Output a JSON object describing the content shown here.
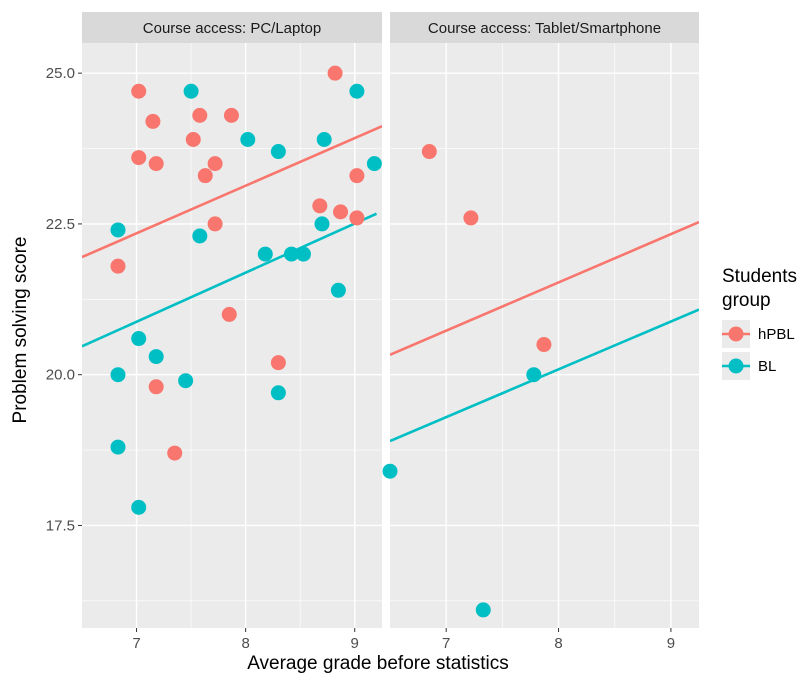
{
  "chart_data": {
    "type": "scatter",
    "xlabel": "Average grade before statistics",
    "ylabel": "Problem solving score",
    "xlim": [
      6.5,
      9.25
    ],
    "ylim": [
      15.8,
      25.5
    ],
    "x_ticks": [
      7,
      8,
      9
    ],
    "x_tick_labels": [
      "7",
      "8",
      "9"
    ],
    "y_ticks": [
      17.5,
      20.0,
      22.5,
      25.0
    ],
    "y_tick_labels": [
      "17.5",
      "20.0",
      "22.5",
      "25.0"
    ],
    "grid": true,
    "legend": {
      "title_line1": "Students",
      "title_line2": "group",
      "position": "right",
      "entries": [
        {
          "label": "hPBL",
          "color": "#F8766D"
        },
        {
          "label": "BL",
          "color": "#00BFC4"
        }
      ]
    },
    "panels": [
      {
        "title": "Course access: PC/Laptop",
        "series": [
          {
            "name": "hPBL",
            "color": "#F8766D",
            "points": [
              [
                7.02,
                24.7
              ],
              [
                7.02,
                23.6
              ],
              [
                7.15,
                24.2
              ],
              [
                7.18,
                23.5
              ],
              [
                6.83,
                21.8
              ],
              [
                7.18,
                19.8
              ],
              [
                7.35,
                18.7
              ],
              [
                7.52,
                23.9
              ],
              [
                7.58,
                24.3
              ],
              [
                7.63,
                23.3
              ],
              [
                7.72,
                23.5
              ],
              [
                7.72,
                22.5
              ],
              [
                7.87,
                24.3
              ],
              [
                7.85,
                21.0
              ],
              [
                8.3,
                20.2
              ],
              [
                8.68,
                22.8
              ],
              [
                8.82,
                25.0
              ],
              [
                8.87,
                22.7
              ],
              [
                9.02,
                23.3
              ],
              [
                9.02,
                22.6
              ]
            ],
            "fit": [
              [
                6.5,
                21.95
              ],
              [
                9.25,
                24.12
              ]
            ]
          },
          {
            "name": "BL",
            "color": "#00BFC4",
            "points": [
              [
                6.83,
                22.4
              ],
              [
                6.83,
                20.0
              ],
              [
                6.83,
                18.8
              ],
              [
                7.02,
                20.6
              ],
              [
                7.02,
                17.8
              ],
              [
                7.18,
                20.3
              ],
              [
                7.45,
                19.9
              ],
              [
                7.5,
                24.7
              ],
              [
                7.58,
                22.3
              ],
              [
                8.02,
                23.9
              ],
              [
                8.18,
                22.0
              ],
              [
                8.3,
                23.7
              ],
              [
                8.3,
                19.7
              ],
              [
                8.42,
                22.0
              ],
              [
                8.53,
                22.0
              ],
              [
                8.7,
                22.5
              ],
              [
                8.72,
                23.9
              ],
              [
                8.85,
                21.4
              ],
              [
                9.02,
                24.7
              ],
              [
                9.18,
                23.5
              ]
            ],
            "fit": [
              [
                6.5,
                20.47
              ],
              [
                9.2,
                22.67
              ]
            ]
          }
        ]
      },
      {
        "title": "Course access: Tablet/Smartphone",
        "series": [
          {
            "name": "hPBL",
            "color": "#F8766D",
            "points": [
              [
                6.85,
                23.7
              ],
              [
                7.22,
                22.6
              ],
              [
                7.87,
                20.5
              ]
            ],
            "fit": [
              [
                6.5,
                20.33
              ],
              [
                9.25,
                22.53
              ]
            ]
          },
          {
            "name": "BL",
            "color": "#00BFC4",
            "points": [
              [
                6.5,
                18.4
              ],
              [
                7.33,
                16.1
              ],
              [
                7.78,
                20.0
              ]
            ],
            "fit": [
              [
                6.5,
                18.9
              ],
              [
                9.25,
                21.08
              ]
            ]
          }
        ]
      }
    ]
  }
}
